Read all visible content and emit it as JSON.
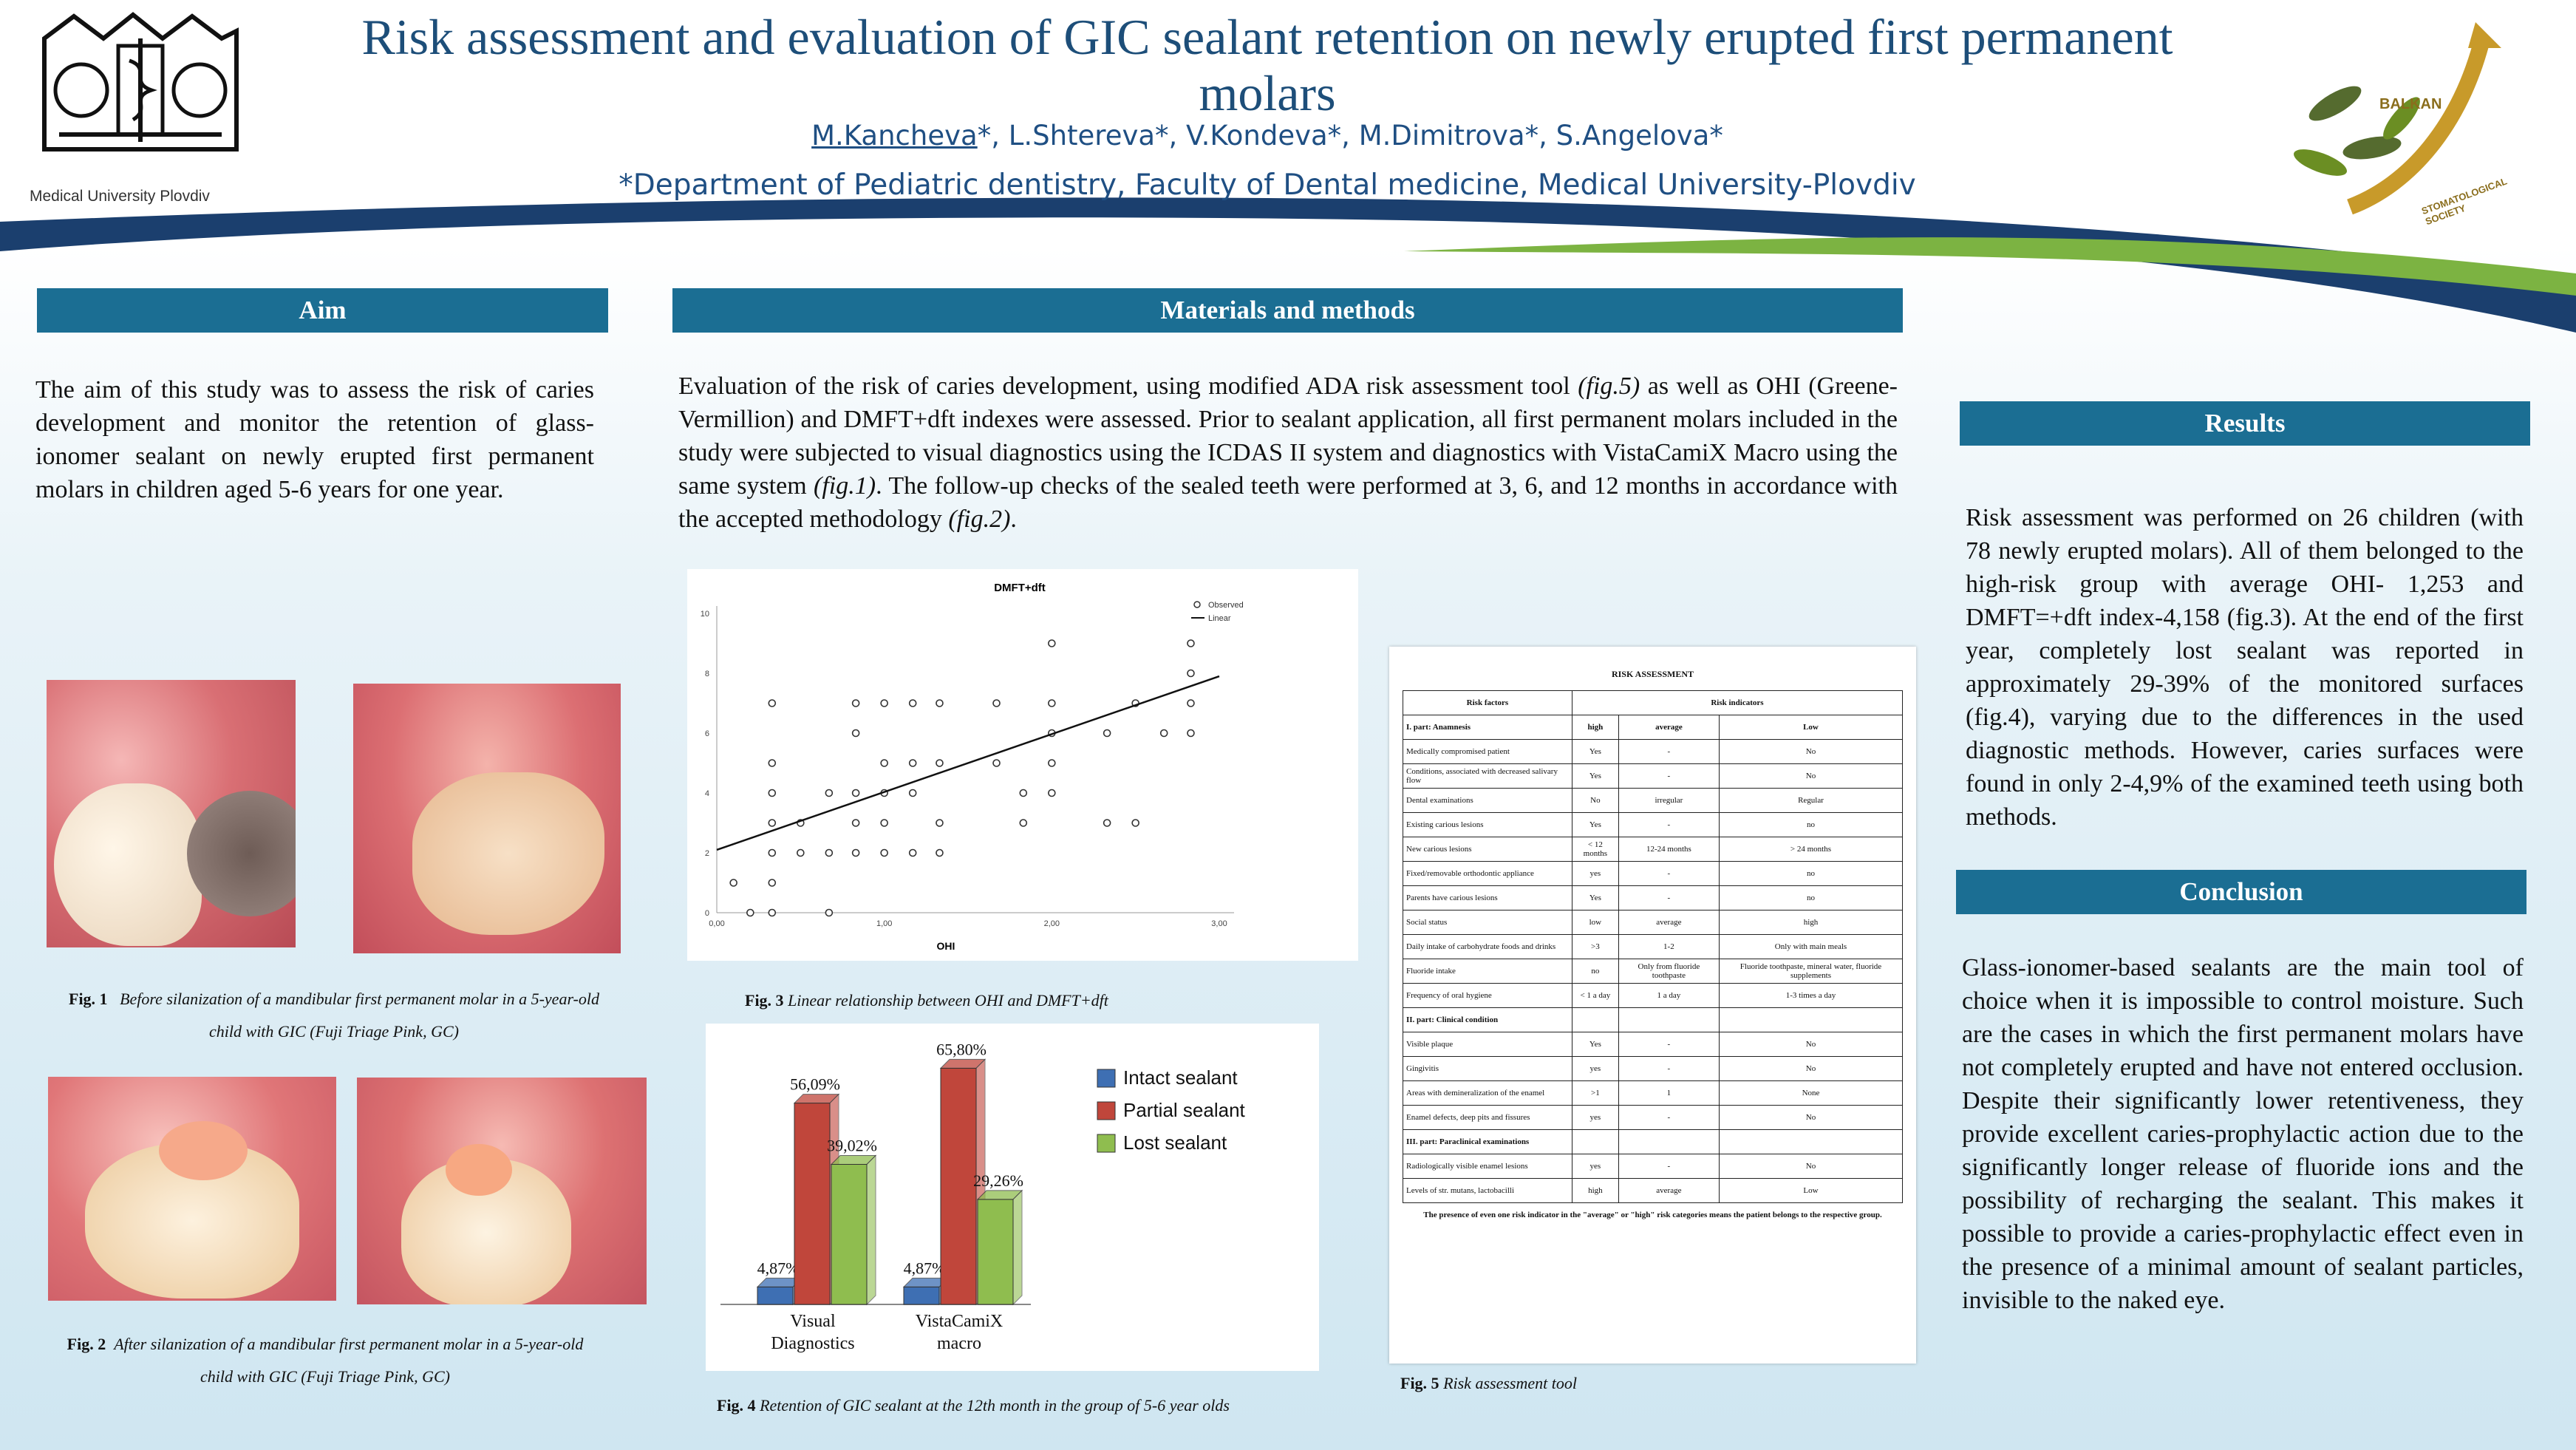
{
  "header": {
    "title": "Risk assessment and evaluation of GIC sealant retention on newly erupted first permanent molars",
    "lead_author": "M.Kancheva",
    "authors_rest": "*, L.Shtereva*, V.Kondeva*, M.Dimitrova*, S.Angelova*",
    "department": "*Department of Pediatric dentistry, Faculty of Dental medicine, Medical University-Plovdiv",
    "left_logo_text": "Medical University Plovdiv",
    "right_logo_text_1": "BALKAN",
    "right_logo_text_2": "STOMATOLOGICAL SOCIETY"
  },
  "aim": {
    "heading": "Aim",
    "text": "The aim of this study was to assess the risk of caries development and monitor the retention of glass-ionomer  sealant on newly erupted first permanent molars in children aged 5-6 years for one year."
  },
  "fig1": {
    "label": "Fig. 1",
    "caption": "Before silanization of a mandibular first permanent molar in a 5-year-old child with GIC (Fuji Triage Pink, GC)"
  },
  "fig2": {
    "label": "Fig. 2",
    "caption": "After silanization of a mandibular first permanent molar in a 5-year-old child with GIC (Fuji Triage Pink, GC)"
  },
  "methods": {
    "heading": "Materials and methods",
    "text_1": "Evaluation of the risk of caries development, using modified ADA risk assessment tool ",
    "ref_fig5": "(fig.5)",
    "text_2": " as well as OHI (Greene-Vermillion) and DMFT+dft indexes were assessed. Prior to sealant application, all first permanent molars included in the study were subjected to visual diagnostics using the ICDAS II system and diagnostics with VistaCamiX Macro using the same system ",
    "ref_fig1": "(fig.1)",
    "text_3": ". The follow-up checks of the sealed teeth were performed at 3, 6, and 12 months in accordance with the accepted methodology ",
    "ref_fig2": "(fig.2)",
    "text_4": "."
  },
  "fig3": {
    "label": "Fig. 3",
    "caption": "Linear relationship between OHI and DMFT+dft"
  },
  "fig4": {
    "label": "Fig. 4",
    "caption": "Retention of GIC sealant at the 12th month in the group of 5-6 year olds"
  },
  "fig5": {
    "label": "Fig. 5",
    "caption": "Risk assessment tool"
  },
  "results": {
    "heading": "Results",
    "text": "Risk assessment was performed on 26 children (with 78 newly erupted molars).  All of them belonged to the high-risk group with average OHI- 1,253 and DMFT=+dft index-4,158 (fig.3). At the end of the first year, completely lost sealant was reported in approximately 29-39%  of the monitored surfaces (fig.4), varying due to the differences in the  used diagnostic methods. However, caries surfaces were found in only 2-4,9% of the examined teeth using both methods."
  },
  "conclusion": {
    "heading": "Conclusion",
    "text": "Glass-ionomer-based sealants are the main tool of choice when it is impossible to control moisture. Such are the cases in which the first permanent molars have not completely erupted and have not entered occlusion. Despite their significantly lower retentiveness, they provide excellent caries-prophylactic action due to the significantly longer release of fluoride ions and the possibility of recharging the sealant. This makes it possible to provide a caries-prophylactic effect even in the presence of a minimal amount of sealant particles, invisible to the naked eye."
  },
  "risk_table": {
    "title": "RISK ASSESSMENT",
    "col_factors": "Risk factors",
    "col_indicators": "Risk indicators",
    "part1": "I. part: Anamnesis",
    "levels": [
      "high",
      "average",
      "Low"
    ],
    "rows1": [
      [
        "Medically compromised patient",
        "Yes",
        "-",
        "No"
      ],
      [
        "Conditions, associated with decreased salivary flow",
        "Yes",
        "-",
        "No"
      ],
      [
        "Dental examinations",
        "No",
        "irregular",
        "Regular"
      ],
      [
        "Existing carious lesions",
        "Yes",
        "-",
        "no"
      ],
      [
        "New carious lesions",
        "< 12 months",
        "12-24 months",
        "> 24 months"
      ],
      [
        "Fixed/removable orthodontic appliance",
        "yes",
        "-",
        "no"
      ],
      [
        "Parents have carious lesions",
        "Yes",
        "-",
        "no"
      ],
      [
        "Social status",
        "low",
        "average",
        "high"
      ],
      [
        "Daily intake of carbohydrate foods and drinks",
        ">3",
        "1-2",
        "Only with main meals"
      ],
      [
        "Fluoride intake",
        "no",
        "Only from fluoride toothpaste",
        "Fluoride toothpaste, mineral water, fluoride supplements"
      ],
      [
        "Frequency of oral hygiene",
        "< 1 a day",
        "1 a day",
        "1-3 times a day"
      ]
    ],
    "part2": "II. part: Clinical condition",
    "rows2": [
      [
        "Visible plaque",
        "Yes",
        "-",
        "No"
      ],
      [
        "Gingivitis",
        "yes",
        "-",
        "No"
      ],
      [
        "Areas with demineralization of the enamel",
        ">1",
        "1",
        "None"
      ],
      [
        "Enamel defects, deep pits and fissures",
        "yes",
        "-",
        "No"
      ]
    ],
    "part3": "III. part: Paraclinical examinations",
    "rows3": [
      [
        "Radiologically visible enamel lesions",
        "yes",
        "-",
        "No"
      ],
      [
        "Levels of str. mutans, lactobacilli",
        "high",
        "average",
        "Low"
      ]
    ],
    "footnote": "The presence of even one risk indicator in the \"average\" or \"high\" risk categories means the patient belongs to the respective group."
  },
  "chart_data": [
    {
      "type": "scatter",
      "title": "DMFT+dft",
      "xlabel": "OHI",
      "ylabel": "",
      "xlim": [
        0,
        3
      ],
      "ylim": [
        0,
        10
      ],
      "x_ticks": [
        "0,00",
        "1,00",
        "2,00",
        "3,00"
      ],
      "y_ticks": [
        "0",
        "2",
        "4",
        "6",
        "8",
        "10"
      ],
      "legend": [
        "Observed",
        "Linear"
      ],
      "legend_position": "top-right",
      "points": [
        [
          0.1,
          1
        ],
        [
          0.2,
          0
        ],
        [
          0.33,
          7
        ],
        [
          0.33,
          5
        ],
        [
          0.33,
          4
        ],
        [
          0.33,
          3
        ],
        [
          0.33,
          2
        ],
        [
          0.33,
          1
        ],
        [
          0.33,
          0
        ],
        [
          0.5,
          3
        ],
        [
          0.5,
          2
        ],
        [
          0.67,
          4
        ],
        [
          0.67,
          2
        ],
        [
          0.67,
          0
        ],
        [
          0.83,
          7
        ],
        [
          0.83,
          6
        ],
        [
          0.83,
          4
        ],
        [
          0.83,
          3
        ],
        [
          0.83,
          2
        ],
        [
          1.0,
          7
        ],
        [
          1.0,
          5
        ],
        [
          1.0,
          4
        ],
        [
          1.0,
          3
        ],
        [
          1.0,
          2
        ],
        [
          1.17,
          5
        ],
        [
          1.17,
          4
        ],
        [
          1.17,
          2
        ],
        [
          1.17,
          7
        ],
        [
          1.33,
          7
        ],
        [
          1.33,
          5
        ],
        [
          1.33,
          3
        ],
        [
          1.33,
          2
        ],
        [
          1.67,
          7
        ],
        [
          1.67,
          5
        ],
        [
          1.83,
          4
        ],
        [
          1.83,
          3
        ],
        [
          2.0,
          9
        ],
        [
          2.0,
          7
        ],
        [
          2.0,
          6
        ],
        [
          2.0,
          5
        ],
        [
          2.0,
          4
        ],
        [
          2.33,
          6
        ],
        [
          2.33,
          3
        ],
        [
          2.5,
          7
        ],
        [
          2.5,
          3
        ],
        [
          2.67,
          6
        ],
        [
          2.83,
          9
        ],
        [
          2.83,
          8
        ],
        [
          2.83,
          7
        ],
        [
          2.83,
          6
        ]
      ],
      "line": [
        [
          0,
          2.1
        ],
        [
          3,
          7.9
        ]
      ]
    },
    {
      "type": "bar",
      "categories": [
        "Visual Diagnostics",
        "VistaCamiX macro"
      ],
      "series": [
        {
          "name": "Intact sealant",
          "values": [
            4.87,
            4.87
          ],
          "labels": [
            "4,87%",
            "4,87%"
          ],
          "color": "#3e6fb3"
        },
        {
          "name": "Partial sealant",
          "values": [
            56.09,
            65.8
          ],
          "labels": [
            "56,09%",
            "65,80%"
          ],
          "color": "#c0463b"
        },
        {
          "name": "Lost sealant",
          "values": [
            39.02,
            29.26
          ],
          "labels": [
            "39,02%",
            "29,26%"
          ],
          "color": "#8fbd4f"
        }
      ],
      "ylim": [
        0,
        70
      ],
      "legend_position": "right"
    }
  ]
}
